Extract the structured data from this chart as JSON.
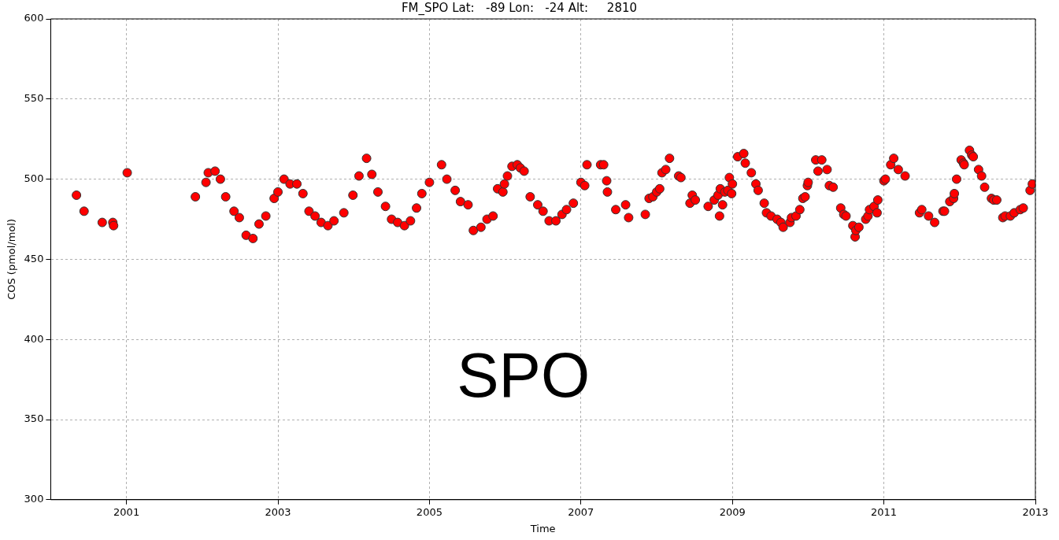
{
  "chart_data": {
    "type": "scatter",
    "title": "FM_SPO Lat:   -89 Lon:   -24 Alt:     2810",
    "xlabel": "Time",
    "ylabel": "COS (pmol/mol)",
    "annotations": [
      "SPO"
    ],
    "x": [
      2000.34,
      2000.44,
      2000.68,
      2000.82,
      2000.83,
      2001.01,
      2001.91,
      2002.05,
      2002.08,
      2002.17,
      2002.24,
      2002.31,
      2002.42,
      2002.49,
      2002.58,
      2002.67,
      2002.75,
      2002.84,
      2002.95,
      2003.0,
      2003.08,
      2003.16,
      2003.25,
      2003.33,
      2003.41,
      2003.49,
      2003.57,
      2003.66,
      2003.74,
      2003.87,
      2003.99,
      2004.07,
      2004.17,
      2004.24,
      2004.32,
      2004.42,
      2004.5,
      2004.58,
      2004.67,
      2004.75,
      2004.83,
      2004.9,
      2005.0,
      2005.16,
      2005.23,
      2005.34,
      2005.41,
      2005.51,
      2005.58,
      2005.68,
      2005.76,
      2005.84,
      2005.9,
      2005.97,
      2005.99,
      2006.03,
      2006.09,
      2006.16,
      2006.2,
      2006.25,
      2006.33,
      2006.43,
      2006.5,
      2006.58,
      2006.67,
      2006.75,
      2006.81,
      2006.9,
      2007.0,
      2007.05,
      2007.08,
      2007.26,
      2007.3,
      2007.34,
      2007.35,
      2007.46,
      2007.59,
      2007.63,
      2007.85,
      2007.9,
      2007.95,
      2008.0,
      2008.04,
      2008.07,
      2008.12,
      2008.17,
      2008.29,
      2008.32,
      2008.44,
      2008.47,
      2008.51,
      2008.68,
      2008.76,
      2008.81,
      2008.84,
      2008.83,
      2008.87,
      2008.9,
      2008.94,
      2008.96,
      2008.99,
      2009.0,
      2009.07,
      2009.15,
      2009.17,
      2009.25,
      2009.31,
      2009.34,
      2009.42,
      2009.45,
      2009.51,
      2009.59,
      2009.64,
      2009.67,
      2009.76,
      2009.78,
      2009.84,
      2009.89,
      2009.93,
      2009.96,
      2009.99,
      2010.0,
      2010.1,
      2010.13,
      2010.18,
      2010.25,
      2010.28,
      2010.33,
      2010.43,
      2010.47,
      2010.5,
      2010.59,
      2010.62,
      2010.63,
      2010.67,
      2010.76,
      2010.79,
      2010.81,
      2010.87,
      2010.91,
      2010.92,
      2011.0,
      2011.02,
      2011.09,
      2011.13,
      2011.19,
      2011.28,
      2011.47,
      2011.5,
      2011.59,
      2011.67,
      2011.78,
      2011.8,
      2011.87,
      2011.92,
      2011.93,
      2011.96,
      2012.02,
      2012.05,
      2012.06,
      2012.13,
      2012.16,
      2012.18,
      2012.25,
      2012.29,
      2012.33,
      2012.42,
      2012.45,
      2012.49,
      2012.57,
      2012.6,
      2012.67,
      2012.72,
      2012.8,
      2012.84,
      2012.93,
      2012.96
    ],
    "values": [
      490,
      480,
      473,
      473,
      471,
      504,
      489,
      498,
      504,
      505,
      500,
      489,
      480,
      476,
      465,
      463,
      472,
      477,
      488,
      492,
      500,
      497,
      497,
      491,
      480,
      477,
      473,
      471,
      474,
      479,
      490,
      502,
      513,
      503,
      492,
      483,
      475,
      473,
      471,
      474,
      482,
      491,
      498,
      509,
      500,
      493,
      486,
      484,
      468,
      470,
      475,
      477,
      494,
      492,
      497,
      502,
      508,
      509,
      507,
      505,
      489,
      484,
      480,
      474,
      474,
      478,
      481,
      485,
      498,
      496,
      509,
      509,
      509,
      499,
      492,
      481,
      484,
      476,
      478,
      488,
      489,
      492,
      494,
      504,
      506,
      513,
      502,
      501,
      485,
      490,
      487,
      483,
      487,
      490,
      494,
      477,
      484,
      492,
      493,
      501,
      491,
      497,
      514,
      516,
      510,
      504,
      497,
      493,
      485,
      479,
      477,
      475,
      473,
      470,
      473,
      476,
      477,
      481,
      488,
      489,
      496,
      498,
      512,
      505,
      512,
      506,
      496,
      495,
      482,
      478,
      477,
      471,
      464,
      468,
      470,
      475,
      477,
      481,
      483,
      479,
      487,
      499,
      500,
      509,
      513,
      506,
      502,
      479,
      481,
      477,
      473,
      480,
      480,
      486,
      488,
      491,
      500,
      512,
      510,
      509,
      518,
      515,
      514,
      506,
      502,
      495,
      488,
      487,
      487,
      476,
      477,
      477,
      479,
      481,
      482,
      493,
      497
    ],
    "color": "#ff0000",
    "marker": "circle",
    "grid": true,
    "xlim": [
      2000,
      2013
    ],
    "ylim": [
      300,
      600
    ],
    "xticks": [
      2001,
      2003,
      2005,
      2007,
      2009,
      2011,
      2013
    ],
    "yticks": [
      300,
      350,
      400,
      450,
      500,
      550,
      600
    ]
  }
}
